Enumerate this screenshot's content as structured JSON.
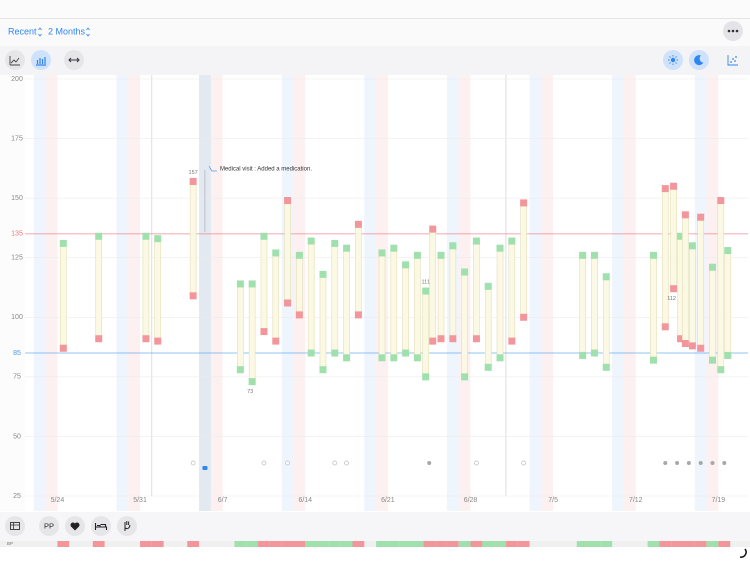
{
  "header": {
    "range_menu": "Recent",
    "period_menu": "2 Months"
  },
  "bottom_bar": {
    "pp_button": "PP",
    "strip_label": "BP"
  },
  "chart_data": {
    "type": "range-bar",
    "x": [
      "5/24",
      "5/27",
      "5/31",
      "6/1",
      "6/4",
      "6/8",
      "6/9",
      "6/10",
      "6/11",
      "6/12",
      "6/13",
      "6/14",
      "6/15",
      "6/16",
      "6/17",
      "6/18",
      "6/20",
      "6/21",
      "6/22",
      "6/23",
      "6/24",
      "6/24",
      "6/25",
      "6/26",
      "6/27",
      "6/28",
      "6/29",
      "6/30",
      "7/1",
      "7/2",
      "7/7",
      "7/8",
      "7/9",
      "7/13",
      "7/14",
      "7/15",
      "7/15",
      "7/16",
      "7/16",
      "7/17",
      "7/18",
      "7/19",
      "7/19"
    ],
    "high": [
      131,
      134,
      134,
      133,
      157,
      114,
      114,
      134,
      127,
      149,
      126,
      132,
      118,
      131,
      129,
      139,
      127,
      129,
      122,
      126,
      111,
      137,
      126,
      130,
      119,
      132,
      113,
      129,
      132,
      148,
      126,
      126,
      117,
      126,
      154,
      155,
      134,
      143,
      130,
      142,
      121,
      149,
      128
    ],
    "low": [
      87,
      91,
      91,
      90,
      109,
      78,
      73,
      94,
      90,
      106,
      101,
      85,
      78,
      85,
      83,
      101,
      83,
      83,
      85,
      83,
      75,
      90,
      91,
      91,
      75,
      91,
      79,
      83,
      90,
      100,
      84,
      85,
      79,
      82,
      96,
      112,
      91,
      89,
      88,
      87,
      82,
      78,
      84
    ],
    "labeled": [
      "high.4",
      "low.6",
      "high.20",
      "low.35"
    ],
    "normal_color": "#9fe0ad",
    "high_color": "#f3969b",
    "bar_color": "#fbf8e3",
    "thresholds": [
      {
        "value": 135,
        "color": "#f0707a"
      },
      {
        "value": 85,
        "color": "#4a9cf0"
      }
    ],
    "xlim": [
      "5/21",
      "7/21"
    ],
    "xticks": [
      "5/24",
      "5/31",
      "6/7",
      "6/14",
      "6/21",
      "6/28",
      "7/5",
      "7/12",
      "7/19"
    ],
    "ylim": [
      25,
      200
    ],
    "yticks": [
      25,
      50,
      75,
      100,
      125,
      150,
      175,
      200
    ],
    "grid": true,
    "annotations": [
      {
        "date": "6/5",
        "text": "Medical visit : Added a medication."
      }
    ],
    "events": {
      "open": [
        "6/4",
        "6/10",
        "6/12",
        "6/16",
        "6/17",
        "6/28",
        "7/2"
      ],
      "filled": [
        "6/24",
        "7/14",
        "7/15",
        "7/16",
        "7/17",
        "7/18",
        "7/19"
      ]
    }
  }
}
